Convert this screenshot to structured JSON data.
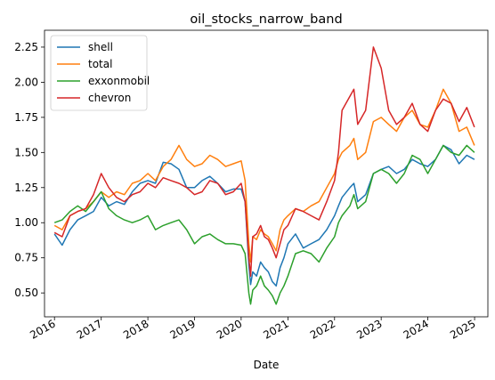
{
  "chart_data": {
    "type": "line",
    "title": "oil_stocks_narrow_band",
    "xlabel": "Date",
    "ylabel": "",
    "x_ticks": [
      "2016",
      "2017",
      "2018",
      "2019",
      "2020",
      "2021",
      "2022",
      "2023",
      "2024",
      "2025"
    ],
    "y_ticks": [
      "0.50",
      "0.75",
      "1.00",
      "1.25",
      "1.50",
      "1.75",
      "2.00",
      "2.25"
    ],
    "xlim": [
      "2015-10-15",
      "2025-04-15"
    ],
    "ylim": [
      0.33,
      2.37
    ],
    "grid": false,
    "legend_position": "top-left",
    "x": [
      "2016-01-01",
      "2016-03-01",
      "2016-05-01",
      "2016-07-01",
      "2016-09-01",
      "2016-11-01",
      "2017-01-01",
      "2017-03-01",
      "2017-05-01",
      "2017-07-01",
      "2017-09-01",
      "2017-11-01",
      "2018-01-01",
      "2018-03-01",
      "2018-05-01",
      "2018-07-01",
      "2018-09-01",
      "2018-11-01",
      "2019-01-01",
      "2019-03-01",
      "2019-05-01",
      "2019-07-01",
      "2019-09-01",
      "2019-11-01",
      "2020-01-01",
      "2020-02-01",
      "2020-03-01",
      "2020-03-15",
      "2020-04-01",
      "2020-05-01",
      "2020-06-01",
      "2020-07-01",
      "2020-08-01",
      "2020-09-01",
      "2020-10-01",
      "2020-11-01",
      "2020-12-01",
      "2021-01-01",
      "2021-03-01",
      "2021-05-01",
      "2021-07-01",
      "2021-09-01",
      "2021-11-01",
      "2022-01-01",
      "2022-02-01",
      "2022-03-01",
      "2022-05-01",
      "2022-06-01",
      "2022-07-01",
      "2022-09-01",
      "2022-11-01",
      "2023-01-01",
      "2023-03-01",
      "2023-05-01",
      "2023-07-01",
      "2023-09-01",
      "2023-11-01",
      "2024-01-01",
      "2024-03-01",
      "2024-05-01",
      "2024-07-01",
      "2024-09-01",
      "2024-11-01",
      "2024-12-31"
    ],
    "series": [
      {
        "name": "shell",
        "color": "#1f77b4",
        "values": [
          0.92,
          0.84,
          0.95,
          1.02,
          1.05,
          1.08,
          1.18,
          1.12,
          1.15,
          1.13,
          1.22,
          1.28,
          1.3,
          1.28,
          1.43,
          1.42,
          1.38,
          1.25,
          1.25,
          1.3,
          1.33,
          1.28,
          1.22,
          1.24,
          1.24,
          1.15,
          0.7,
          0.56,
          0.65,
          0.62,
          0.72,
          0.68,
          0.65,
          0.58,
          0.55,
          0.68,
          0.75,
          0.85,
          0.92,
          0.82,
          0.85,
          0.88,
          0.95,
          1.05,
          1.12,
          1.18,
          1.25,
          1.28,
          1.15,
          1.2,
          1.35,
          1.38,
          1.4,
          1.35,
          1.38,
          1.45,
          1.42,
          1.4,
          1.45,
          1.55,
          1.52,
          1.42,
          1.48,
          1.45
        ]
      },
      {
        "name": "total",
        "color": "#ff7f0e",
        "values": [
          0.98,
          0.95,
          1.05,
          1.08,
          1.1,
          1.15,
          1.22,
          1.18,
          1.22,
          1.2,
          1.28,
          1.3,
          1.35,
          1.3,
          1.4,
          1.45,
          1.55,
          1.45,
          1.4,
          1.42,
          1.48,
          1.45,
          1.4,
          1.42,
          1.44,
          1.3,
          0.85,
          0.72,
          0.9,
          0.88,
          0.95,
          0.92,
          0.9,
          0.85,
          0.8,
          0.95,
          1.02,
          1.05,
          1.1,
          1.08,
          1.12,
          1.15,
          1.25,
          1.35,
          1.45,
          1.5,
          1.55,
          1.6,
          1.45,
          1.5,
          1.72,
          1.75,
          1.7,
          1.65,
          1.75,
          1.8,
          1.7,
          1.68,
          1.8,
          1.95,
          1.85,
          1.65,
          1.68,
          1.55
        ]
      },
      {
        "name": "exxonmobil",
        "color": "#2ca02c",
        "values": [
          1.0,
          1.02,
          1.08,
          1.12,
          1.08,
          1.15,
          1.22,
          1.1,
          1.05,
          1.02,
          1.0,
          1.02,
          1.05,
          0.95,
          0.98,
          1.0,
          1.02,
          0.95,
          0.85,
          0.9,
          0.92,
          0.88,
          0.85,
          0.85,
          0.84,
          0.78,
          0.5,
          0.42,
          0.52,
          0.55,
          0.62,
          0.55,
          0.52,
          0.48,
          0.42,
          0.5,
          0.55,
          0.62,
          0.78,
          0.8,
          0.78,
          0.72,
          0.82,
          0.9,
          1.0,
          1.05,
          1.12,
          1.2,
          1.1,
          1.15,
          1.35,
          1.38,
          1.35,
          1.28,
          1.35,
          1.48,
          1.45,
          1.35,
          1.45,
          1.55,
          1.5,
          1.48,
          1.55,
          1.5
        ]
      },
      {
        "name": "chevron",
        "color": "#d62728",
        "values": [
          0.93,
          0.9,
          1.05,
          1.08,
          1.1,
          1.2,
          1.35,
          1.25,
          1.18,
          1.15,
          1.2,
          1.22,
          1.28,
          1.25,
          1.32,
          1.3,
          1.28,
          1.25,
          1.2,
          1.22,
          1.3,
          1.28,
          1.2,
          1.22,
          1.28,
          1.15,
          0.75,
          0.62,
          0.9,
          0.92,
          0.98,
          0.9,
          0.88,
          0.82,
          0.75,
          0.85,
          0.95,
          0.98,
          1.1,
          1.08,
          1.05,
          1.02,
          1.15,
          1.3,
          1.5,
          1.8,
          1.9,
          1.95,
          1.7,
          1.8,
          2.25,
          2.1,
          1.8,
          1.7,
          1.75,
          1.85,
          1.7,
          1.65,
          1.8,
          1.88,
          1.85,
          1.72,
          1.82,
          1.68
        ]
      }
    ]
  }
}
